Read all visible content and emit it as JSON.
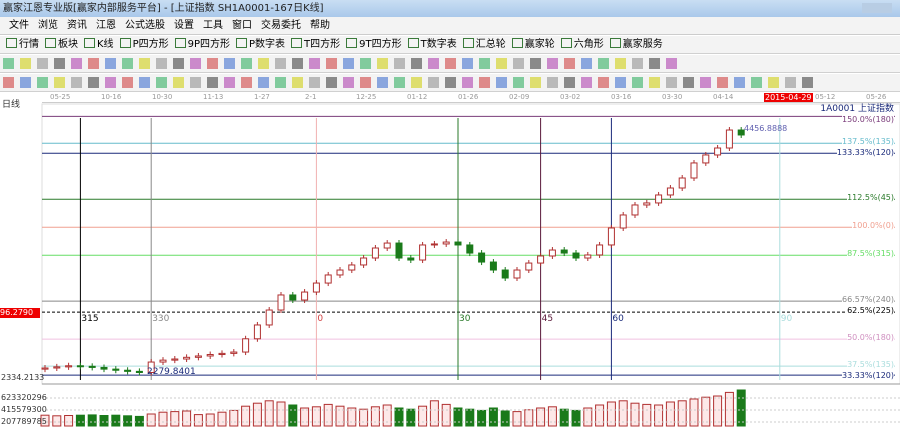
{
  "window": {
    "title": "赢家江恩专业版[赢家内部服务平台] - [上证指数 SH1A0001-167日K线]"
  },
  "menu": [
    "文件",
    "浏览",
    "资讯",
    "江恩",
    "公式选股",
    "设置",
    "工具",
    "窗口",
    "交易委托",
    "帮助"
  ],
  "toolbar": [
    "行情",
    "板块",
    "K线",
    "P四方形",
    "9P四方形",
    "P数字表",
    "T四方形",
    "9T四方形",
    "T数字表",
    "汇总轮",
    "赢家轮",
    "六角形",
    "赢家服务"
  ],
  "chart": {
    "period_label": "日线",
    "symbol_label": "1A0001 上证指数",
    "dates": [
      "05-25",
      "10-16",
      "10-30",
      "11-13",
      "1-27",
      "2-1",
      "12-25",
      "01-12",
      "01-26",
      "02-09",
      "03-02",
      "03-16",
      "03-30",
      "04-14",
      "2015-04-29",
      "05-12",
      "05-26"
    ],
    "highlight_date": "2015-04-29",
    "price_left_label": "96.2790",
    "low_left_label": "2334.2133",
    "low_marker": "2279.8401",
    "high_marker": "4456.8888",
    "volume_labels": [
      "623320296",
      "415579300",
      "207789785"
    ],
    "closes": [
      2320,
      2330,
      2340,
      2335,
      2325,
      2310,
      2300,
      2290,
      2280,
      2373,
      2390,
      2400,
      2415,
      2427,
      2440,
      2450,
      2462,
      2580,
      2703,
      2836,
      2970,
      2925,
      2996,
      3076,
      3148,
      3192,
      3237,
      3299,
      3388,
      3432,
      3299,
      3281,
      3415,
      3424,
      3441,
      3415,
      3343,
      3263,
      3192,
      3121,
      3192,
      3254,
      3317,
      3370,
      3343,
      3299,
      3326,
      3415,
      3566,
      3682,
      3771,
      3789,
      3860,
      3922,
      4011,
      4145,
      4216,
      4278,
      4438,
      4394
    ],
    "volumes": [
      180,
      170,
      175,
      180,
      185,
      175,
      180,
      170,
      160,
      200,
      230,
      240,
      250,
      190,
      200,
      230,
      260,
      330,
      380,
      420,
      400,
      350,
      300,
      320,
      360,
      330,
      300,
      280,
      320,
      350,
      300,
      280,
      330,
      420,
      360,
      300,
      280,
      260,
      300,
      250,
      240,
      270,
      300,
      320,
      280,
      260,
      300,
      350,
      400,
      420,
      380,
      360,
      350,
      400,
      420,
      450,
      480,
      500,
      560,
      600
    ],
    "fib_levels": [
      {
        "label": "150.0%(180)",
        "price": 4560,
        "color": "#7a3b7a"
      },
      {
        "label": "137.5%(135)",
        "price": 4320,
        "color": "#66bbcc"
      },
      {
        "label": "133.33%(120)",
        "price": 4231,
        "color": "#1a2a7a"
      },
      {
        "label": "112.5%(45)",
        "price": 3822,
        "color": "#2a7a2a"
      },
      {
        "label": "100.0%(0)",
        "price": 3573,
        "color": "#f0a090"
      },
      {
        "label": "87.5%(315)",
        "price": 3324,
        "color": "#66dd66"
      },
      {
        "label": "66.57%(240)",
        "price": 2915,
        "color": "#888888"
      },
      {
        "label": "62.5%(225)",
        "price": 2817,
        "color": "#000000"
      },
      {
        "label": "50.0%(180)",
        "price": 2577,
        "color": "#f0c0e0"
      },
      {
        "label": "37.5%(135)",
        "price": 2337,
        "color": "#aadddd"
      },
      {
        "label": "33.33%(120)",
        "price": 2257,
        "color": "#1a2a7a"
      }
    ],
    "time_lines": [
      {
        "label": "315",
        "index": 3,
        "color": "#000000"
      },
      {
        "label": "330",
        "index": 9,
        "color": "#888888"
      },
      {
        "label": "0",
        "index": 23,
        "color": "#f0b0b0"
      },
      {
        "label": "30",
        "index": 35,
        "color": "#2a7a2a"
      },
      {
        "label": "45",
        "index": 42,
        "color": "#5a1a3a"
      },
      {
        "label": "60",
        "index": 48,
        "color": "#1a2a7a"
      },
      {
        "label": "90",
        "index": 61,
        "color": "#aadddd"
      }
    ],
    "colors": {
      "up": "#b03030",
      "down": "#1a7a1a"
    }
  }
}
